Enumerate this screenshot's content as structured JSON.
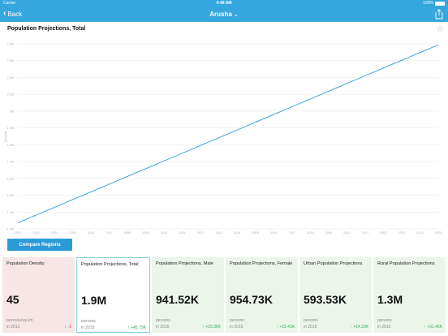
{
  "status_bar": {
    "carrier": "Carrier",
    "time": "4:49 AM",
    "battery": "100%"
  },
  "nav": {
    "back_label": "Back",
    "title": "Arusha"
  },
  "chart_title": "Population Projections, Total",
  "chart_data": {
    "type": "line",
    "title": "Population Projections, Total",
    "xlabel": "",
    "ylabel": "persons",
    "x": [
      2002,
      2003,
      2004,
      2005,
      2006,
      2007,
      2008,
      2009,
      2010,
      2011,
      2012,
      2013,
      2014,
      2015,
      2016,
      2017,
      2018,
      2019,
      2020,
      2021,
      2022,
      2023,
      2024,
      2025
    ],
    "x_ticks": [
      "2002",
      "2003",
      "2004",
      "2005",
      "2006",
      "2007",
      "2008",
      "2009",
      "2010",
      "2011",
      "2012",
      "2013",
      "2014",
      "2015",
      "2016",
      "2017",
      "2018",
      "2019",
      "2020",
      "2021",
      "2022",
      "2023",
      "2024",
      "2025"
    ],
    "y_ticks": [
      "1.3M",
      "1.4M",
      "1.5M",
      "1.6M",
      "1.7M",
      "1.8M",
      "1.9M",
      "2M",
      "2.1M",
      "2.2M",
      "2.3M",
      "2.4M"
    ],
    "y_tick_values": [
      1.3,
      1.4,
      1.5,
      1.6,
      1.7,
      1.8,
      1.9,
      2.0,
      2.1,
      2.2,
      2.3,
      2.4
    ],
    "ylim": [
      1.3,
      2.4
    ],
    "series": [
      {
        "values": [
          1.336,
          1.382,
          1.428,
          1.474,
          1.52,
          1.566,
          1.612,
          1.658,
          1.704,
          1.75,
          1.796,
          1.842,
          1.888,
          1.934,
          1.98,
          2.026,
          2.072,
          2.118,
          2.164,
          2.21,
          2.256,
          2.302,
          2.348,
          2.394
        ]
      }
    ],
    "grid": true,
    "line_color": "#2d9ad8"
  },
  "compare_button": "Compare Regions",
  "cards": [
    {
      "title": "Population Density",
      "value": "45",
      "unit": "persons/sq.km",
      "year": "in 2012",
      "change": "↓ -1",
      "direction": "down",
      "style": "red"
    },
    {
      "title": "Population Projections, Total",
      "value": "1.9M",
      "unit": "persons",
      "year": "in 2015",
      "change": "↑ +45.79K",
      "direction": "up",
      "style": "selected"
    },
    {
      "title": "Population Projections, Male",
      "value": "941.52K",
      "unit": "persons",
      "year": "in 2015",
      "change": "↑ +23.36K",
      "direction": "up",
      "style": "green"
    },
    {
      "title": "Population Projections, Female",
      "value": "954.73K",
      "unit": "persons",
      "year": "in 2015",
      "change": "↑ +22.43K",
      "direction": "up",
      "style": "green"
    },
    {
      "title": "Urban Population Projections",
      "value": "593.53K",
      "unit": "persons",
      "year": "in 2015",
      "change": "↑ +14.33K",
      "direction": "up",
      "style": "green"
    },
    {
      "title": "Rural Population Projections",
      "value": "1.3M",
      "unit": "persons",
      "year": "in 2015",
      "change": "↑ +31.46K",
      "direction": "up",
      "style": "green"
    }
  ],
  "icons": {
    "back": "chevron-left-icon",
    "share": "share-icon",
    "favorite": "star-outline-icon",
    "title_caret": "chevron-down-icon",
    "battery": "battery-icon"
  },
  "colors": {
    "nav": "#35a7de",
    "accent": "#2d9ad8",
    "positive": "#3aa85e",
    "negative": "#d03a3a",
    "card_green": "#ebf5ea",
    "card_red": "#f7e6e6"
  }
}
